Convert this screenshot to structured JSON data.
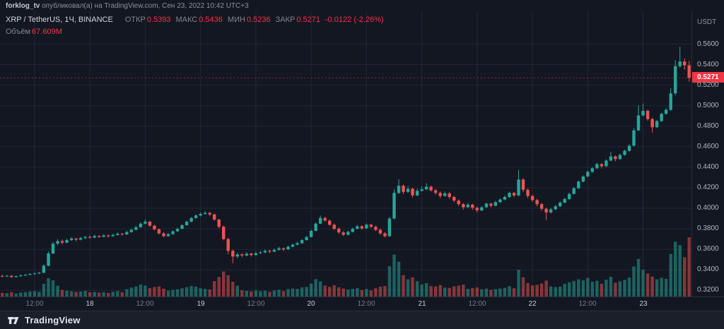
{
  "top_bar": {
    "username": "forklog_tv",
    "rest": " опубликовал(а) на TradingView.com, Сен 23, 2022 10:42 UTC+3"
  },
  "legend": {
    "symbol": "XRP / TetherUS, 1Ч, BINANCE",
    "open_label": "ОТКР",
    "open": "0.5393",
    "high_label": "МАКС",
    "high": "0.5436",
    "low_label": "МИН",
    "low": "0.5236",
    "close_label": "ЗАКР",
    "close": "0.5271",
    "change": "-0.0122 (-2.26%)",
    "volume_label": "Объём",
    "volume": "67.609M"
  },
  "price_axis": {
    "currency": "USDT",
    "current_price": "0.5271"
  },
  "footer": {
    "brand": "TradingView"
  },
  "colors": {
    "background": "#131722",
    "up": "#26a69a",
    "down": "#ef5350",
    "down_text": "#f23645",
    "grid": "rgba(54,60,78,0.45)",
    "axis_border": "#2a2e39"
  },
  "chart_data": {
    "type": "candlestick+volume",
    "title": "XRP / TetherUS, 1Ч, BINANCE",
    "pair": "XRP/USDT",
    "exchange": "BINANCE",
    "interval": "1h",
    "price_range": [
      0.314,
      0.592
    ],
    "last_price": 0.5271,
    "last_candle": {
      "open": 0.5393,
      "high": 0.5436,
      "low": 0.5236,
      "close": 0.5271,
      "volume_m": 67.609
    },
    "y_ticks": [
      0.56,
      0.54,
      0.52,
      0.5,
      0.48,
      0.46,
      0.44,
      0.42,
      0.4,
      0.38,
      0.36,
      0.34,
      0.32
    ],
    "y_tick_labels": [
      "0.5600",
      "0.5400",
      "0.5200",
      "0.5000",
      "0.4800",
      "0.4600",
      "0.4400",
      "0.4200",
      "0.4000",
      "0.3800",
      "0.3600",
      "0.3400",
      "0.3200"
    ],
    "x_ticks": [
      {
        "i": 7,
        "label": "12:00",
        "major": false
      },
      {
        "i": 19,
        "label": "18",
        "major": true
      },
      {
        "i": 31,
        "label": "12:00",
        "major": false
      },
      {
        "i": 43,
        "label": "19",
        "major": true
      },
      {
        "i": 55,
        "label": "12:00",
        "major": false
      },
      {
        "i": 67,
        "label": "20",
        "major": true
      },
      {
        "i": 79,
        "label": "12:00",
        "major": false
      },
      {
        "i": 91,
        "label": "21",
        "major": true
      },
      {
        "i": 103,
        "label": "12:00",
        "major": false
      },
      {
        "i": 115,
        "label": "22",
        "major": true
      },
      {
        "i": 127,
        "label": "12:00",
        "major": false
      },
      {
        "i": 139,
        "label": "23",
        "major": true
      }
    ],
    "candles": [
      [
        0.334,
        0.3352,
        0.3328,
        0.3335,
        4.2
      ],
      [
        0.3335,
        0.335,
        0.333,
        0.3342,
        3.8
      ],
      [
        0.3342,
        0.3348,
        0.3322,
        0.333,
        5.1
      ],
      [
        0.333,
        0.3345,
        0.3325,
        0.3338,
        3.5
      ],
      [
        0.3338,
        0.3355,
        0.3333,
        0.3346,
        4.6
      ],
      [
        0.3346,
        0.336,
        0.334,
        0.3352,
        5.0
      ],
      [
        0.3352,
        0.3368,
        0.3347,
        0.336,
        5.8
      ],
      [
        0.336,
        0.3375,
        0.3352,
        0.3365,
        6.2
      ],
      [
        0.3365,
        0.338,
        0.3358,
        0.3372,
        5.4
      ],
      [
        0.3372,
        0.3455,
        0.3368,
        0.344,
        14.5
      ],
      [
        0.344,
        0.358,
        0.3435,
        0.356,
        21.0
      ],
      [
        0.356,
        0.3672,
        0.3552,
        0.3655,
        18.4
      ],
      [
        0.3655,
        0.37,
        0.364,
        0.368,
        12.2
      ],
      [
        0.368,
        0.3695,
        0.365,
        0.3665,
        7.5
      ],
      [
        0.3665,
        0.3702,
        0.3658,
        0.369,
        6.8
      ],
      [
        0.369,
        0.3718,
        0.3682,
        0.3705,
        6.0
      ],
      [
        0.3705,
        0.3712,
        0.3678,
        0.3695,
        5.2
      ],
      [
        0.3695,
        0.3722,
        0.3688,
        0.371,
        5.6
      ],
      [
        0.371,
        0.3732,
        0.37,
        0.372,
        6.4
      ],
      [
        0.372,
        0.3735,
        0.3705,
        0.3715,
        4.8
      ],
      [
        0.3715,
        0.3742,
        0.371,
        0.373,
        5.2
      ],
      [
        0.373,
        0.3738,
        0.3712,
        0.3722,
        4.4
      ],
      [
        0.3722,
        0.3748,
        0.3716,
        0.3735,
        4.9
      ],
      [
        0.3735,
        0.3745,
        0.3715,
        0.3728,
        4.1
      ],
      [
        0.3728,
        0.3752,
        0.3722,
        0.374,
        5.5
      ],
      [
        0.374,
        0.3765,
        0.3734,
        0.3752,
        6.3
      ],
      [
        0.3752,
        0.376,
        0.3732,
        0.3745,
        5.0
      ],
      [
        0.3745,
        0.3782,
        0.374,
        0.3768,
        8.4
      ],
      [
        0.3768,
        0.3805,
        0.3762,
        0.379,
        10.2
      ],
      [
        0.379,
        0.383,
        0.3785,
        0.3815,
        11.6
      ],
      [
        0.3815,
        0.3862,
        0.381,
        0.385,
        13.8
      ],
      [
        0.385,
        0.389,
        0.3842,
        0.387,
        12.4
      ],
      [
        0.387,
        0.3878,
        0.3822,
        0.383,
        9.6
      ],
      [
        0.383,
        0.384,
        0.3785,
        0.3795,
        10.8
      ],
      [
        0.3795,
        0.3806,
        0.3745,
        0.3755,
        11.5
      ],
      [
        0.3755,
        0.3768,
        0.3718,
        0.3728,
        9.0
      ],
      [
        0.3728,
        0.3758,
        0.3722,
        0.3748,
        6.8
      ],
      [
        0.3748,
        0.3785,
        0.3742,
        0.3775,
        7.6
      ],
      [
        0.3775,
        0.3812,
        0.377,
        0.38,
        8.2
      ],
      [
        0.38,
        0.3845,
        0.3795,
        0.3835,
        9.4
      ],
      [
        0.3835,
        0.388,
        0.383,
        0.387,
        10.6
      ],
      [
        0.387,
        0.3915,
        0.3862,
        0.3905,
        12.0
      ],
      [
        0.3905,
        0.3942,
        0.3898,
        0.393,
        11.2
      ],
      [
        0.393,
        0.3958,
        0.392,
        0.3945,
        9.5
      ],
      [
        0.3945,
        0.3972,
        0.3938,
        0.3955,
        8.8
      ],
      [
        0.3955,
        0.3965,
        0.3925,
        0.394,
        8.0
      ],
      [
        0.394,
        0.3948,
        0.3878,
        0.389,
        17.5
      ],
      [
        0.389,
        0.3898,
        0.3805,
        0.382,
        22.4
      ],
      [
        0.382,
        0.3832,
        0.3688,
        0.37,
        28.6
      ],
      [
        0.37,
        0.3712,
        0.3552,
        0.3585,
        24.2
      ],
      [
        0.3585,
        0.3598,
        0.3465,
        0.353,
        16.8
      ],
      [
        0.353,
        0.3568,
        0.3512,
        0.355,
        12.4
      ],
      [
        0.355,
        0.3562,
        0.3522,
        0.354,
        7.2
      ],
      [
        0.354,
        0.3572,
        0.3532,
        0.3558,
        6.5
      ],
      [
        0.3558,
        0.3566,
        0.353,
        0.3545,
        5.8
      ],
      [
        0.3545,
        0.3578,
        0.3538,
        0.3562,
        6.9
      ],
      [
        0.3562,
        0.3585,
        0.3555,
        0.357,
        6.1
      ],
      [
        0.357,
        0.3598,
        0.3562,
        0.3585,
        6.6
      ],
      [
        0.3585,
        0.3595,
        0.356,
        0.3578,
        5.4
      ],
      [
        0.3578,
        0.3608,
        0.3572,
        0.3595,
        7.0
      ],
      [
        0.3595,
        0.3625,
        0.3588,
        0.361,
        7.8
      ],
      [
        0.361,
        0.3618,
        0.3582,
        0.36,
        6.2
      ],
      [
        0.36,
        0.3638,
        0.3595,
        0.3625,
        8.5
      ],
      [
        0.3625,
        0.3658,
        0.362,
        0.3645,
        9.2
      ],
      [
        0.3645,
        0.3675,
        0.3638,
        0.366,
        8.8
      ],
      [
        0.366,
        0.3702,
        0.3652,
        0.369,
        10.4
      ],
      [
        0.369,
        0.3732,
        0.3685,
        0.372,
        11.0
      ],
      [
        0.372,
        0.3792,
        0.3715,
        0.378,
        14.6
      ],
      [
        0.378,
        0.3862,
        0.3775,
        0.385,
        19.8
      ],
      [
        0.385,
        0.393,
        0.3845,
        0.3905,
        17.2
      ],
      [
        0.3905,
        0.3918,
        0.3868,
        0.388,
        12.4
      ],
      [
        0.388,
        0.3892,
        0.3828,
        0.384,
        11.0
      ],
      [
        0.384,
        0.3852,
        0.3788,
        0.38,
        12.8
      ],
      [
        0.38,
        0.3815,
        0.3752,
        0.3765,
        10.5
      ],
      [
        0.3765,
        0.3778,
        0.373,
        0.3742,
        9.2
      ],
      [
        0.3742,
        0.3782,
        0.3736,
        0.377,
        8.0
      ],
      [
        0.377,
        0.3812,
        0.3764,
        0.38,
        8.8
      ],
      [
        0.38,
        0.3838,
        0.3795,
        0.3825,
        9.6
      ],
      [
        0.3825,
        0.3835,
        0.3792,
        0.3805,
        7.4
      ],
      [
        0.3805,
        0.3852,
        0.38,
        0.384,
        8.6
      ],
      [
        0.384,
        0.385,
        0.3808,
        0.382,
        7.0
      ],
      [
        0.382,
        0.3832,
        0.3778,
        0.379,
        9.4
      ],
      [
        0.379,
        0.3802,
        0.3742,
        0.3755,
        11.2
      ],
      [
        0.3755,
        0.3768,
        0.3715,
        0.3728,
        12.0
      ],
      [
        0.3728,
        0.3915,
        0.3722,
        0.39,
        34.5
      ],
      [
        0.39,
        0.4185,
        0.3892,
        0.415,
        47.8
      ],
      [
        0.415,
        0.4282,
        0.414,
        0.422,
        39.6
      ],
      [
        0.422,
        0.4232,
        0.4138,
        0.416,
        24.4
      ],
      [
        0.416,
        0.4215,
        0.4148,
        0.419,
        19.6
      ],
      [
        0.419,
        0.4202,
        0.4105,
        0.4125,
        21.8
      ],
      [
        0.4125,
        0.4192,
        0.4118,
        0.417,
        17.5
      ],
      [
        0.417,
        0.4212,
        0.4162,
        0.4185,
        13.8
      ],
      [
        0.4185,
        0.4245,
        0.4178,
        0.421,
        15.2
      ],
      [
        0.421,
        0.4222,
        0.4162,
        0.4175,
        12.0
      ],
      [
        0.4175,
        0.4188,
        0.4132,
        0.415,
        11.4
      ],
      [
        0.415,
        0.4165,
        0.4098,
        0.412,
        13.0
      ],
      [
        0.412,
        0.4162,
        0.4112,
        0.4145,
        10.2
      ],
      [
        0.4145,
        0.4158,
        0.4092,
        0.411,
        9.8
      ],
      [
        0.411,
        0.4122,
        0.4058,
        0.4075,
        11.6
      ],
      [
        0.4075,
        0.4088,
        0.4022,
        0.404,
        12.4
      ],
      [
        0.404,
        0.4052,
        0.3988,
        0.401,
        13.6
      ],
      [
        0.401,
        0.4052,
        0.4002,
        0.4035,
        8.8
      ],
      [
        0.4035,
        0.4045,
        0.3985,
        0.4005,
        9.6
      ],
      [
        0.4005,
        0.4018,
        0.3958,
        0.398,
        10.4
      ],
      [
        0.398,
        0.4022,
        0.3972,
        0.401,
        8.2
      ],
      [
        0.401,
        0.4058,
        0.4005,
        0.4045,
        9.0
      ],
      [
        0.4045,
        0.4055,
        0.4008,
        0.4025,
        7.6
      ],
      [
        0.4025,
        0.4072,
        0.4018,
        0.406,
        8.4
      ],
      [
        0.406,
        0.4098,
        0.4052,
        0.4085,
        9.2
      ],
      [
        0.4085,
        0.4125,
        0.4078,
        0.411,
        10.0
      ],
      [
        0.411,
        0.4162,
        0.4102,
        0.415,
        11.8
      ],
      [
        0.415,
        0.416,
        0.4108,
        0.4125,
        9.4
      ],
      [
        0.4125,
        0.437,
        0.4118,
        0.428,
        30.5
      ],
      [
        0.428,
        0.4295,
        0.4158,
        0.418,
        22.0
      ],
      [
        0.418,
        0.4195,
        0.4098,
        0.412,
        15.4
      ],
      [
        0.412,
        0.4132,
        0.4062,
        0.408,
        12.6
      ],
      [
        0.408,
        0.4092,
        0.4018,
        0.404,
        13.4
      ],
      [
        0.404,
        0.4052,
        0.3975,
        0.3995,
        14.8
      ],
      [
        0.3995,
        0.4008,
        0.3885,
        0.396,
        18.2
      ],
      [
        0.396,
        0.4002,
        0.3948,
        0.399,
        11.6
      ],
      [
        0.399,
        0.4032,
        0.3982,
        0.402,
        10.8
      ],
      [
        0.402,
        0.4068,
        0.4012,
        0.4055,
        11.2
      ],
      [
        0.4055,
        0.4102,
        0.4048,
        0.409,
        14.4
      ],
      [
        0.409,
        0.4152,
        0.4082,
        0.414,
        16.2
      ],
      [
        0.414,
        0.4208,
        0.4132,
        0.4195,
        17.8
      ],
      [
        0.4195,
        0.4272,
        0.4188,
        0.426,
        19.6
      ],
      [
        0.426,
        0.4322,
        0.4252,
        0.431,
        18.4
      ],
      [
        0.431,
        0.4368,
        0.4302,
        0.4355,
        21.2
      ],
      [
        0.4355,
        0.4402,
        0.4345,
        0.439,
        16.8
      ],
      [
        0.439,
        0.4445,
        0.4382,
        0.443,
        18.0
      ],
      [
        0.443,
        0.4442,
        0.4388,
        0.441,
        14.6
      ],
      [
        0.441,
        0.4478,
        0.4402,
        0.4465,
        19.2
      ],
      [
        0.4465,
        0.455,
        0.4458,
        0.4505,
        22.6
      ],
      [
        0.4505,
        0.4515,
        0.4458,
        0.448,
        15.8
      ],
      [
        0.448,
        0.4532,
        0.4472,
        0.452,
        17.4
      ],
      [
        0.452,
        0.4572,
        0.4512,
        0.456,
        19.0
      ],
      [
        0.456,
        0.4625,
        0.4552,
        0.461,
        21.6
      ],
      [
        0.461,
        0.4782,
        0.4602,
        0.476,
        34.2
      ],
      [
        0.476,
        0.5002,
        0.4752,
        0.4905,
        42.8
      ],
      [
        0.4905,
        0.502,
        0.4895,
        0.495,
        30.4
      ],
      [
        0.495,
        0.4962,
        0.4852,
        0.487,
        26.2
      ],
      [
        0.487,
        0.4882,
        0.4738,
        0.479,
        22.8
      ],
      [
        0.479,
        0.4862,
        0.4782,
        0.485,
        19.6
      ],
      [
        0.485,
        0.4932,
        0.4842,
        0.492,
        21.4
      ],
      [
        0.492,
        0.4975,
        0.4912,
        0.496,
        20.2
      ],
      [
        0.496,
        0.517,
        0.495,
        0.512,
        48.5
      ],
      [
        0.512,
        0.5445,
        0.51,
        0.5385,
        62.4
      ],
      [
        0.5385,
        0.5575,
        0.537,
        0.543,
        58.6
      ],
      [
        0.543,
        0.546,
        0.535,
        0.5393,
        44.8
      ],
      [
        0.5393,
        0.5436,
        0.5236,
        0.5271,
        67.609
      ]
    ]
  }
}
